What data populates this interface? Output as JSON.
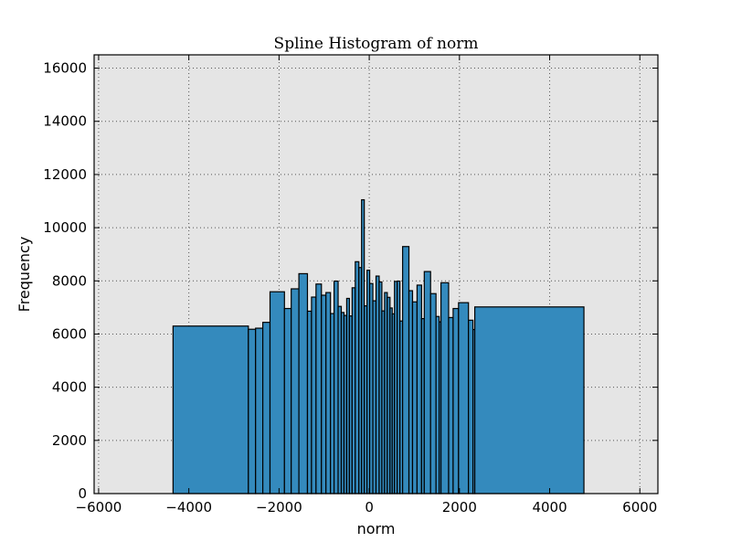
{
  "chart_data": {
    "type": "bar",
    "title": "Spline Histogram of norm",
    "xlabel": "norm",
    "ylabel": "Frequency",
    "xlim": [
      -6100,
      6400
    ],
    "ylim": [
      0,
      16500
    ],
    "xticks": [
      -6000,
      -4000,
      -2000,
      0,
      2000,
      4000,
      6000
    ],
    "yticks": [
      0,
      2000,
      4000,
      6000,
      8000,
      10000,
      12000,
      14000,
      16000
    ],
    "grid": true,
    "bar_color": "#348abd",
    "edge_color": "#000000",
    "plot_background": "#e5e5e5",
    "bins": [
      {
        "x0": -4350,
        "x1": -2680,
        "value": 6300
      },
      {
        "x0": -2680,
        "x1": -2520,
        "value": 6180
      },
      {
        "x0": -2520,
        "x1": -2360,
        "value": 6220
      },
      {
        "x0": -2360,
        "x1": -2200,
        "value": 6440
      },
      {
        "x0": -2200,
        "x1": -1880,
        "value": 7590
      },
      {
        "x0": -1880,
        "x1": -1730,
        "value": 6960
      },
      {
        "x0": -1730,
        "x1": -1560,
        "value": 7700
      },
      {
        "x0": -1560,
        "x1": -1370,
        "value": 8270
      },
      {
        "x0": -1370,
        "x1": -1280,
        "value": 6860
      },
      {
        "x0": -1280,
        "x1": -1180,
        "value": 7390
      },
      {
        "x0": -1180,
        "x1": -1060,
        "value": 7880
      },
      {
        "x0": -1060,
        "x1": -960,
        "value": 7460
      },
      {
        "x0": -960,
        "x1": -860,
        "value": 7560
      },
      {
        "x0": -860,
        "x1": -780,
        "value": 6770
      },
      {
        "x0": -780,
        "x1": -690,
        "value": 7990
      },
      {
        "x0": -690,
        "x1": -620,
        "value": 7040
      },
      {
        "x0": -620,
        "x1": -560,
        "value": 6810
      },
      {
        "x0": -560,
        "x1": -500,
        "value": 6700
      },
      {
        "x0": -500,
        "x1": -440,
        "value": 7340
      },
      {
        "x0": -440,
        "x1": -380,
        "value": 6680
      },
      {
        "x0": -380,
        "x1": -310,
        "value": 7740
      },
      {
        "x0": -310,
        "x1": -230,
        "value": 8720
      },
      {
        "x0": -230,
        "x1": -170,
        "value": 8500
      },
      {
        "x0": -170,
        "x1": -110,
        "value": 11050
      },
      {
        "x0": -110,
        "x1": -50,
        "value": 7060
      },
      {
        "x0": -50,
        "x1": 10,
        "value": 8400
      },
      {
        "x0": 10,
        "x1": 80,
        "value": 7900
      },
      {
        "x0": 80,
        "x1": 150,
        "value": 7250
      },
      {
        "x0": 150,
        "x1": 220,
        "value": 8180
      },
      {
        "x0": 220,
        "x1": 280,
        "value": 7960
      },
      {
        "x0": 280,
        "x1": 340,
        "value": 6870
      },
      {
        "x0": 340,
        "x1": 400,
        "value": 7560
      },
      {
        "x0": 400,
        "x1": 460,
        "value": 7380
      },
      {
        "x0": 460,
        "x1": 510,
        "value": 6980
      },
      {
        "x0": 510,
        "x1": 560,
        "value": 6760
      },
      {
        "x0": 560,
        "x1": 620,
        "value": 7980
      },
      {
        "x0": 620,
        "x1": 680,
        "value": 7990
      },
      {
        "x0": 680,
        "x1": 740,
        "value": 6490
      },
      {
        "x0": 740,
        "x1": 880,
        "value": 9290
      },
      {
        "x0": 880,
        "x1": 960,
        "value": 7630
      },
      {
        "x0": 960,
        "x1": 1060,
        "value": 7210
      },
      {
        "x0": 1060,
        "x1": 1160,
        "value": 7840
      },
      {
        "x0": 1160,
        "x1": 1220,
        "value": 6580
      },
      {
        "x0": 1220,
        "x1": 1360,
        "value": 8350
      },
      {
        "x0": 1360,
        "x1": 1480,
        "value": 7520
      },
      {
        "x0": 1480,
        "x1": 1550,
        "value": 6660
      },
      {
        "x0": 1550,
        "x1": 1590,
        "value": 6460
      },
      {
        "x0": 1590,
        "x1": 1760,
        "value": 7930
      },
      {
        "x0": 1760,
        "x1": 1860,
        "value": 6620
      },
      {
        "x0": 1860,
        "x1": 1980,
        "value": 6960
      },
      {
        "x0": 1980,
        "x1": 2200,
        "value": 7180
      },
      {
        "x0": 2200,
        "x1": 2300,
        "value": 6520
      },
      {
        "x0": 2300,
        "x1": 2340,
        "value": 6170
      },
      {
        "x0": 2340,
        "x1": 4760,
        "value": 7020
      }
    ]
  }
}
